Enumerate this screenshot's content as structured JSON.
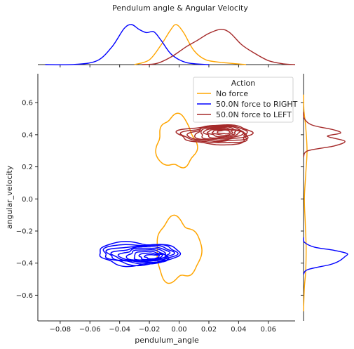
{
  "chart_data": {
    "type": "kde-joint",
    "title": "Pendulum angle & Angular Velocity",
    "xlabel": "pendulum_angle",
    "ylabel": "angular_velocity",
    "xlim": [
      -0.095,
      0.078
    ],
    "ylim": [
      -0.76,
      0.78
    ],
    "xticks": [
      -0.08,
      -0.06,
      -0.04,
      -0.02,
      0.0,
      0.02,
      0.04,
      0.06
    ],
    "xtick_labels": [
      "−0.08",
      "−0.06",
      "−0.04",
      "−0.02",
      "0.00",
      "0.02",
      "0.04",
      "0.06"
    ],
    "yticks": [
      -0.6,
      -0.4,
      -0.2,
      0.0,
      0.2,
      0.4,
      0.6
    ],
    "ytick_labels": [
      "−0.6",
      "−0.4",
      "−0.2",
      "0.0",
      "0.2",
      "0.4",
      "0.6"
    ],
    "legend": {
      "title": "Action",
      "placement": "top-right",
      "entries": [
        "No force",
        "50.0N force to RIGHT",
        "50.0N force to LEFT"
      ]
    },
    "series": [
      {
        "name": "No force",
        "color": "#ffa500",
        "contour_levels": 1,
        "clusters": [
          {
            "center": [
              -0.002,
              0.35
            ],
            "half_width": [
              0.013,
              0.16
            ]
          },
          {
            "center": [
              -0.001,
              -0.32
            ],
            "half_width": [
              0.015,
              0.19
            ]
          }
        ],
        "marginal_x": [
          [
            -0.03,
            0.0
          ],
          [
            -0.02,
            0.12
          ],
          [
            -0.012,
            0.5
          ],
          [
            -0.006,
            0.85
          ],
          [
            -0.002,
            1.0
          ],
          [
            0.003,
            0.8
          ],
          [
            0.01,
            0.35
          ],
          [
            0.018,
            0.12
          ],
          [
            0.03,
            0.05
          ],
          [
            0.045,
            0.0
          ]
        ],
        "marginal_y": [
          [
            -0.7,
            0.0
          ],
          [
            -0.55,
            0.02
          ],
          [
            -0.45,
            0.05
          ],
          [
            -0.3,
            0.06
          ],
          [
            -0.15,
            0.04
          ],
          [
            0.0,
            0.02
          ],
          [
            0.15,
            0.05
          ],
          [
            0.3,
            0.08
          ],
          [
            0.45,
            0.05
          ],
          [
            0.55,
            0.01
          ],
          [
            0.65,
            0.0
          ]
        ]
      },
      {
        "name": "50.0N force to RIGHT",
        "color": "#0000ff",
        "contour_levels": 9,
        "clusters": [
          {
            "center": [
              -0.028,
              -0.34
            ],
            "half_width": [
              0.027,
              0.07
            ]
          }
        ],
        "marginal_x": [
          [
            -0.09,
            0.0
          ],
          [
            -0.07,
            0.005
          ],
          [
            -0.055,
            0.1
          ],
          [
            -0.045,
            0.45
          ],
          [
            -0.037,
            0.9
          ],
          [
            -0.032,
            1.0
          ],
          [
            -0.027,
            0.88
          ],
          [
            -0.022,
            0.8
          ],
          [
            -0.017,
            0.82
          ],
          [
            -0.012,
            0.6
          ],
          [
            -0.005,
            0.25
          ],
          [
            0.005,
            0.05
          ],
          [
            0.02,
            0.0
          ]
        ],
        "marginal_y": [
          [
            -0.47,
            0.0
          ],
          [
            -0.44,
            0.1
          ],
          [
            -0.41,
            0.6
          ],
          [
            -0.39,
            0.8
          ],
          [
            -0.36,
            0.95
          ],
          [
            -0.34,
            1.0
          ],
          [
            -0.32,
            0.7
          ],
          [
            -0.3,
            0.25
          ],
          [
            -0.27,
            0.02
          ],
          [
            -0.24,
            0.0
          ]
        ]
      },
      {
        "name": "50.0N force to LEFT",
        "color": "#a52a2a",
        "contour_levels": 9,
        "clusters": [
          {
            "center": [
              0.025,
              0.4
            ],
            "half_width": [
              0.024,
              0.06
            ]
          }
        ],
        "marginal_x": [
          [
            -0.025,
            0.0
          ],
          [
            -0.015,
            0.03
          ],
          [
            -0.005,
            0.2
          ],
          [
            0.005,
            0.45
          ],
          [
            0.012,
            0.6
          ],
          [
            0.02,
            0.78
          ],
          [
            0.028,
            0.88
          ],
          [
            0.034,
            0.8
          ],
          [
            0.042,
            0.5
          ],
          [
            0.05,
            0.3
          ],
          [
            0.06,
            0.1
          ],
          [
            0.07,
            0.02
          ],
          [
            0.078,
            0.0
          ]
        ],
        "marginal_y": [
          [
            0.26,
            0.0
          ],
          [
            0.3,
            0.1
          ],
          [
            0.33,
            0.7
          ],
          [
            0.36,
            0.95
          ],
          [
            0.39,
            0.55
          ],
          [
            0.41,
            0.85
          ],
          [
            0.43,
            0.7
          ],
          [
            0.46,
            0.2
          ],
          [
            0.5,
            0.02
          ],
          [
            0.54,
            0.0
          ]
        ]
      }
    ]
  }
}
